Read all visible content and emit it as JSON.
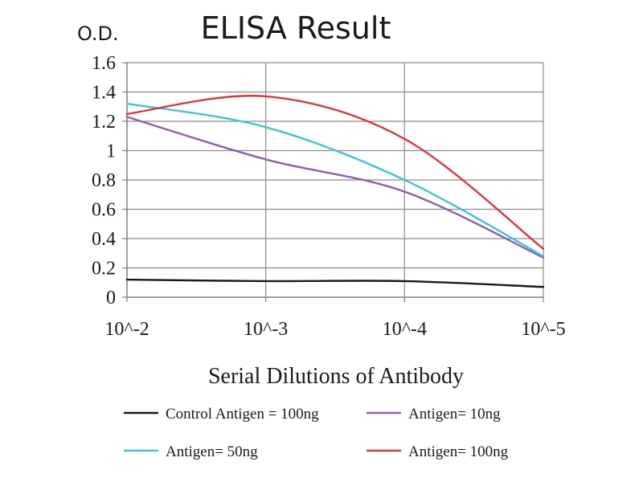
{
  "chart_data": {
    "type": "line",
    "title": "ELISA Result",
    "ylabel": "O.D.",
    "xlabel": "Serial Dilutions of Antibody",
    "x": [
      "10^-2",
      "10^-3",
      "10^-4",
      "10^-5"
    ],
    "x_tick_labels": [
      "10^-2",
      "10^-3",
      "10^-4",
      "10^-5"
    ],
    "ylim": [
      0,
      1.6
    ],
    "y_ticks": [
      0,
      0.2,
      0.4,
      0.6,
      0.8,
      1,
      1.2,
      1.4,
      1.6
    ],
    "y_tick_labels": [
      "0",
      "0.2",
      "0.4",
      "0.6",
      "0.8",
      "1",
      "1.2",
      "1.4",
      "1.6"
    ],
    "grid": true,
    "legend_position": "bottom",
    "series": [
      {
        "name": "Control Antigen = 100ng",
        "color": "#1a1a1a",
        "values": [
          0.12,
          0.11,
          0.11,
          0.07
        ]
      },
      {
        "name": "Antigen= 10ng",
        "color": "#8e5fb0",
        "values": [
          1.23,
          0.94,
          0.72,
          0.27
        ]
      },
      {
        "name": "Antigen= 50ng",
        "color": "#3ec5d4",
        "values": [
          1.32,
          1.16,
          0.8,
          0.28
        ]
      },
      {
        "name": "Antigen= 100ng",
        "color": "#d9373a",
        "values": [
          1.25,
          1.37,
          1.08,
          0.33
        ]
      }
    ]
  }
}
